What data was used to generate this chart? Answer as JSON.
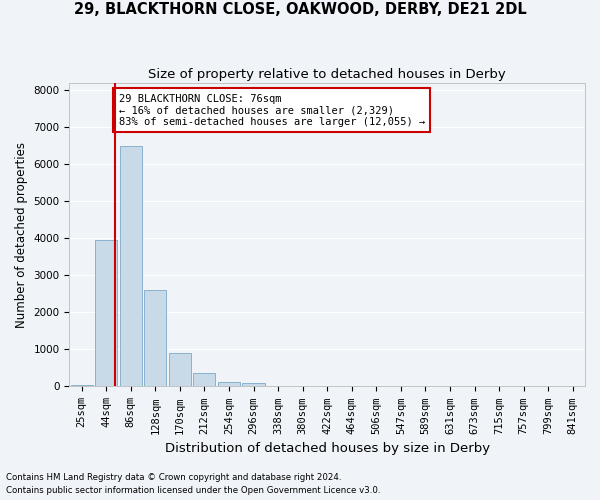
{
  "title": "29, BLACKTHORN CLOSE, OAKWOOD, DERBY, DE21 2DL",
  "subtitle": "Size of property relative to detached houses in Derby",
  "xlabel": "Distribution of detached houses by size in Derby",
  "ylabel": "Number of detached properties",
  "footnote1": "Contains HM Land Registry data © Crown copyright and database right 2024.",
  "footnote2": "Contains public sector information licensed under the Open Government Licence v3.0.",
  "annotation_line1": "29 BLACKTHORN CLOSE: 76sqm",
  "annotation_line2": "← 16% of detached houses are smaller (2,329)",
  "annotation_line3": "83% of semi-detached houses are larger (12,055) →",
  "property_size_idx": 1.35,
  "bar_color": "#c8d9e8",
  "bar_edge_color": "#7aaac8",
  "vline_color": "#cc0000",
  "annotation_box_color": "#cc0000",
  "categories": [
    "25sqm",
    "44sqm",
    "86sqm",
    "128sqm",
    "170sqm",
    "212sqm",
    "254sqm",
    "296sqm",
    "338sqm",
    "380sqm",
    "422sqm",
    "464sqm",
    "506sqm",
    "547sqm",
    "589sqm",
    "631sqm",
    "673sqm",
    "715sqm",
    "757sqm",
    "799sqm",
    "841sqm"
  ],
  "values": [
    50,
    3950,
    6500,
    2600,
    900,
    370,
    130,
    80,
    25,
    10,
    5,
    3,
    2,
    1,
    1,
    0,
    0,
    0,
    0,
    0,
    0
  ],
  "ylim": [
    0,
    8200
  ],
  "yticks": [
    0,
    1000,
    2000,
    3000,
    4000,
    5000,
    6000,
    7000,
    8000
  ],
  "background_color": "#f0f4f8",
  "plot_background": "#f0f4f8",
  "grid_color": "#ffffff",
  "title_fontsize": 10.5,
  "subtitle_fontsize": 9.5,
  "tick_fontsize": 7.5,
  "ann_fontsize": 7.5
}
